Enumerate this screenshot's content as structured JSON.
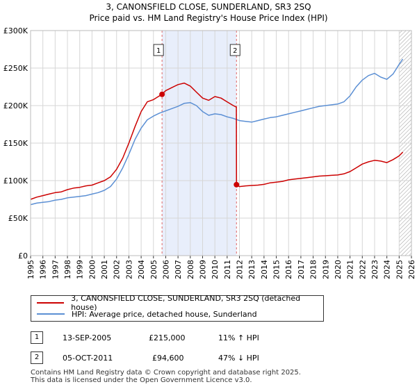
{
  "header": {
    "title_line1": "3, CANONSFIELD CLOSE, SUNDERLAND, SR3 2SQ",
    "title_line2": "Price paid vs. HM Land Registry's House Price Index (HPI)"
  },
  "chart_data": {
    "type": "line",
    "title": "3, CANONSFIELD CLOSE, SUNDERLAND, SR3 2SQ — Price paid vs. HM Land Registry's House Price Index (HPI)",
    "xlabel": "",
    "ylabel": "",
    "xlim": [
      1995,
      2026
    ],
    "ylim": [
      0,
      300000
    ],
    "y_ticks": [
      {
        "value": 0,
        "label": "£0"
      },
      {
        "value": 50000,
        "label": "£50K"
      },
      {
        "value": 100000,
        "label": "£100K"
      },
      {
        "value": 150000,
        "label": "£150K"
      },
      {
        "value": 200000,
        "label": "£200K"
      },
      {
        "value": 250000,
        "label": "£250K"
      },
      {
        "value": 300000,
        "label": "£300K"
      }
    ],
    "x_ticks": [
      "1995",
      "1996",
      "1997",
      "1998",
      "1999",
      "2000",
      "2001",
      "2002",
      "2003",
      "2004",
      "2005",
      "2006",
      "2007",
      "2008",
      "2009",
      "2010",
      "2011",
      "2012",
      "2013",
      "2014",
      "2015",
      "2016",
      "2017",
      "2018",
      "2019",
      "2020",
      "2021",
      "2022",
      "2023",
      "2024",
      "2025",
      "2026"
    ],
    "grid": true,
    "shaded_region": [
      2005.7,
      2011.76
    ],
    "hatched_from": 2025.0,
    "series": [
      {
        "name": "3, CANONSFIELD CLOSE, SUNDERLAND, SR3 2SQ (detached house)",
        "color": "#cc0000",
        "x": [
          1995,
          1995.5,
          1996,
          1996.5,
          1997,
          1997.5,
          1998,
          1998.5,
          1999,
          1999.5,
          2000,
          2000.5,
          2001,
          2001.5,
          2002,
          2002.5,
          2003,
          2003.5,
          2004,
          2004.5,
          2005,
          2005.4,
          2005.7,
          2006,
          2006.5,
          2007,
          2007.5,
          2008,
          2008.5,
          2009,
          2009.5,
          2010,
          2010.5,
          2011,
          2011.5,
          2011.75,
          2011.76,
          2012,
          2012.5,
          2013,
          2013.5,
          2014,
          2014.5,
          2015,
          2015.5,
          2016,
          2016.5,
          2017,
          2017.5,
          2018,
          2018.5,
          2019,
          2019.5,
          2020,
          2020.5,
          2021,
          2021.5,
          2022,
          2022.5,
          2023,
          2023.5,
          2024,
          2024.5,
          2025,
          2025.3
        ],
        "values": [
          75000,
          78000,
          80000,
          82000,
          84000,
          85000,
          88000,
          90000,
          91000,
          93000,
          94000,
          97000,
          100000,
          105000,
          115000,
          130000,
          150000,
          172000,
          192000,
          205000,
          208000,
          212000,
          215000,
          220000,
          224000,
          228000,
          230000,
          226000,
          218000,
          210000,
          207000,
          212000,
          210000,
          205000,
          200000,
          198000,
          94600,
          92000,
          93000,
          93500,
          94000,
          95000,
          97000,
          98000,
          99000,
          101000,
          102000,
          103000,
          104000,
          105000,
          106000,
          106500,
          107000,
          107500,
          109000,
          112000,
          117000,
          122000,
          125000,
          127000,
          126000,
          124000,
          128000,
          133000,
          138000
        ]
      },
      {
        "name": "HPI: Average price, detached house, Sunderland",
        "color": "#5b8fd4",
        "x": [
          1995,
          1995.5,
          1996,
          1996.5,
          1997,
          1997.5,
          1998,
          1998.5,
          1999,
          1999.5,
          2000,
          2000.5,
          2001,
          2001.5,
          2002,
          2002.5,
          2003,
          2003.5,
          2004,
          2004.5,
          2005,
          2005.5,
          2006,
          2006.5,
          2007,
          2007.5,
          2008,
          2008.5,
          2009,
          2009.5,
          2010,
          2010.5,
          2011,
          2011.5,
          2012,
          2012.5,
          2013,
          2013.5,
          2014,
          2014.5,
          2015,
          2015.5,
          2016,
          2016.5,
          2017,
          2017.5,
          2018,
          2018.5,
          2019,
          2019.5,
          2020,
          2020.5,
          2021,
          2021.5,
          2022,
          2022.5,
          2023,
          2023.5,
          2024,
          2024.5,
          2025,
          2025.3
        ],
        "values": [
          68000,
          70000,
          71000,
          72000,
          74000,
          75000,
          77000,
          78000,
          79000,
          80000,
          82000,
          84000,
          87000,
          92000,
          102000,
          117000,
          135000,
          155000,
          170000,
          181000,
          186000,
          190000,
          193000,
          196000,
          199000,
          203000,
          204000,
          200000,
          192000,
          187000,
          189000,
          188000,
          185000,
          183000,
          180000,
          179000,
          178000,
          180000,
          182000,
          184000,
          185000,
          187000,
          189000,
          191000,
          193000,
          195000,
          197000,
          199000,
          200000,
          201000,
          202000,
          205000,
          213000,
          225000,
          234000,
          240000,
          243000,
          238000,
          235000,
          242000,
          255000,
          262000
        ]
      }
    ],
    "annotations": [
      {
        "label": "1",
        "x": 2005.7,
        "value": 215000
      },
      {
        "label": "2",
        "x": 2011.76,
        "value": 94600
      }
    ]
  },
  "legend": {
    "items": [
      {
        "label": "3, CANONSFIELD CLOSE, SUNDERLAND, SR3 2SQ (detached house)",
        "color": "#cc0000"
      },
      {
        "label": "HPI: Average price, detached house, Sunderland",
        "color": "#5b8fd4"
      }
    ]
  },
  "transactions": [
    {
      "num": "1",
      "date": "13-SEP-2005",
      "price": "£215,000",
      "hpi": "11% ↑ HPI"
    },
    {
      "num": "2",
      "date": "05-OCT-2011",
      "price": "£94,600",
      "hpi": "47% ↓ HPI"
    }
  ],
  "footer": {
    "line1": "Contains HM Land Registry data © Crown copyright and database right 2025.",
    "line2": "This data is licensed under the Open Government Licence v3.0."
  }
}
